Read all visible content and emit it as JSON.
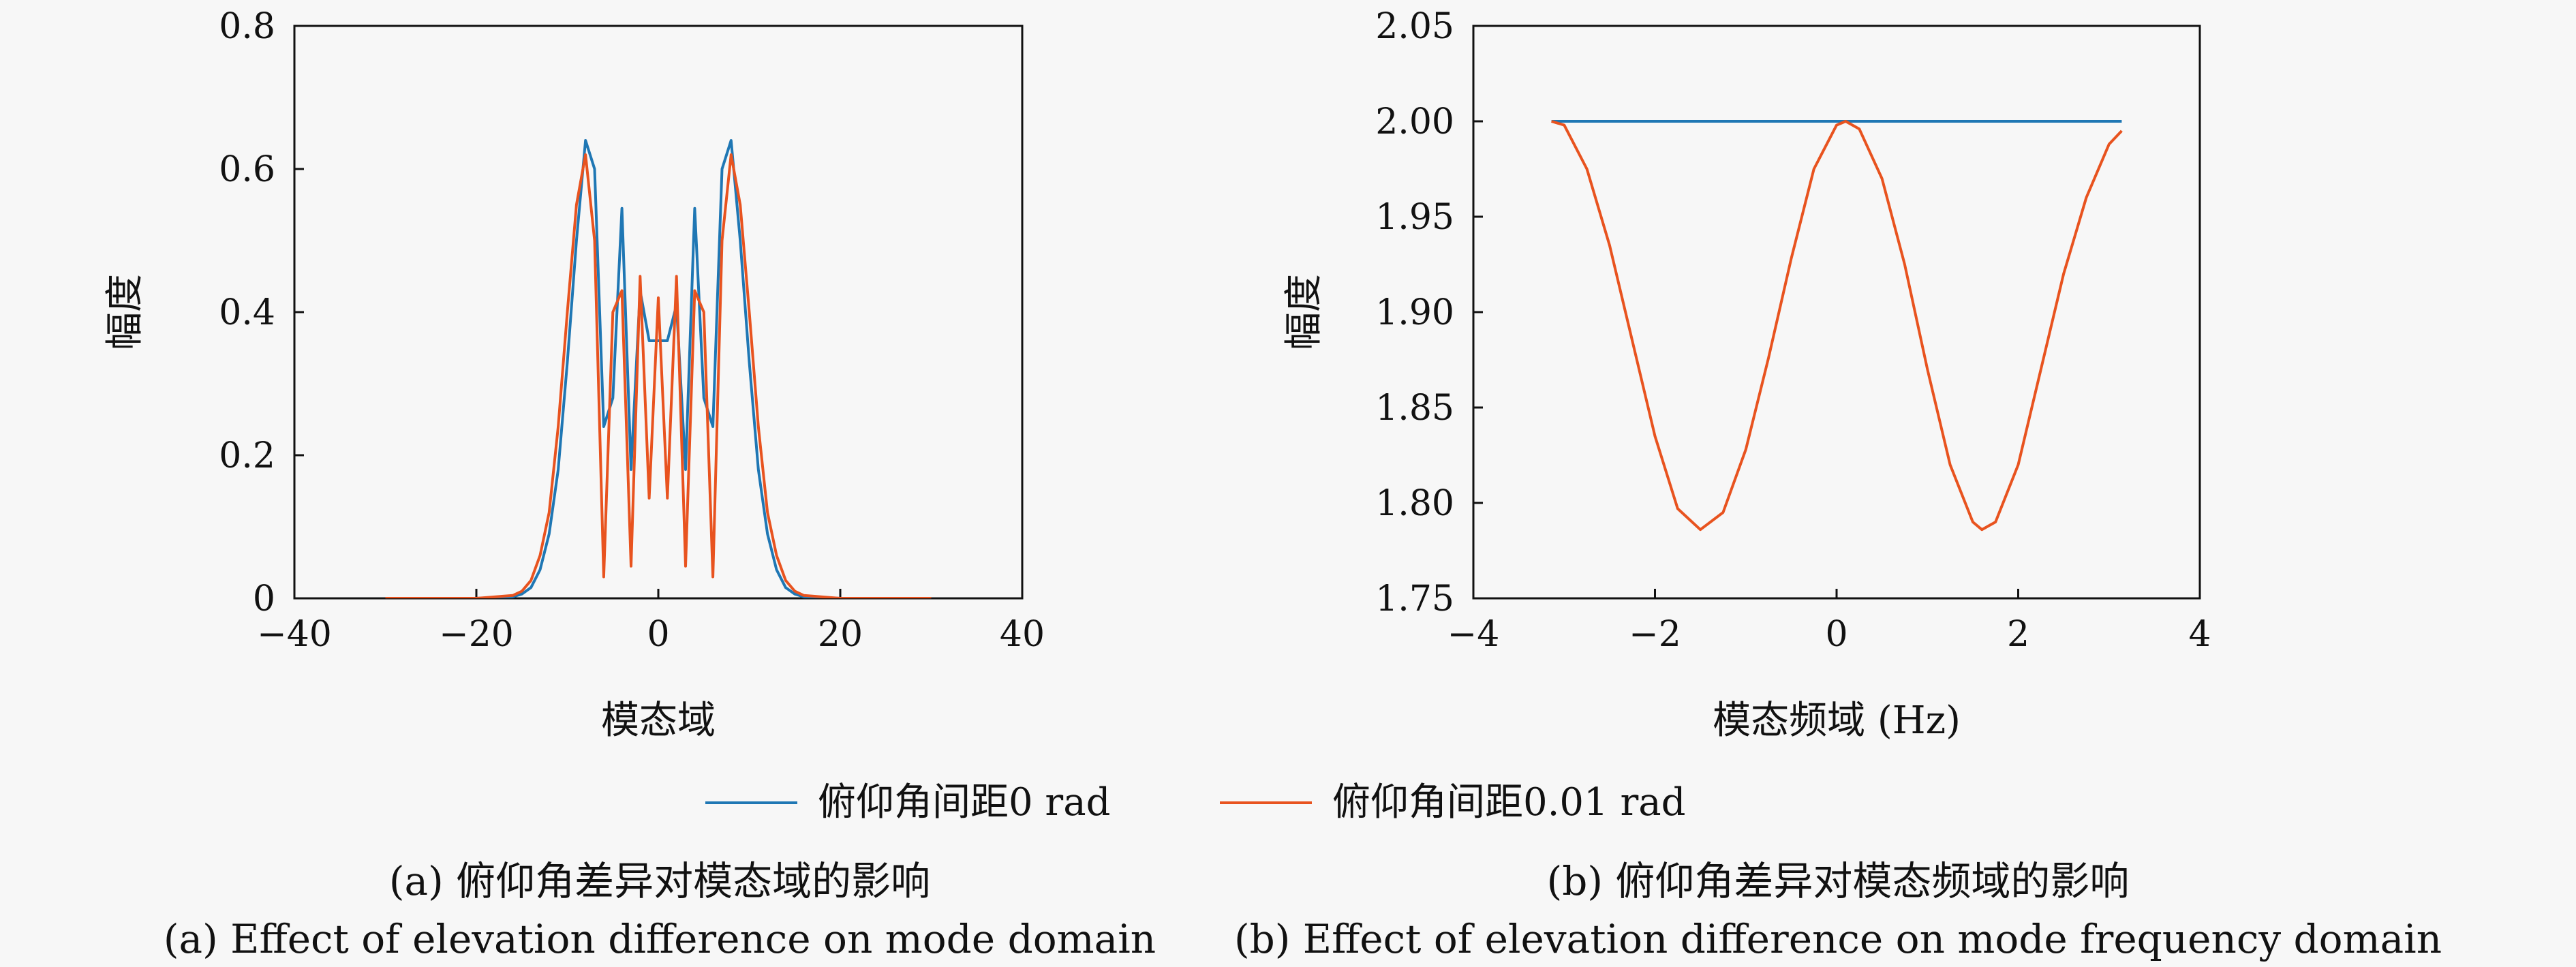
{
  "colors": {
    "series_blue": "#1f77b4",
    "series_orange": "#e8531f",
    "background": "#f7f7f7"
  },
  "legend": {
    "placement": "bottom-center",
    "entries": [
      "俯仰角间距0 rad",
      "俯仰角间距0.01 rad"
    ]
  },
  "chart_data": [
    {
      "type": "line",
      "title": "",
      "xlabel": "模态域",
      "ylabel": "幅度",
      "xlim": [
        -40,
        40
      ],
      "ylim": [
        0,
        0.8
      ],
      "xticks": [
        -40,
        -20,
        0,
        20,
        40
      ],
      "xtick_labels": [
        "−40",
        "−20",
        "0",
        "20",
        "40"
      ],
      "yticks": [
        0,
        0.2,
        0.4,
        0.6,
        0.8
      ],
      "ytick_labels": [
        "0",
        "0.2",
        "0.4",
        "0.6",
        "0.8"
      ],
      "grid": false,
      "caption_cn": "(a) 俯仰角差异对模态域的影响",
      "caption_en": "(a) Effect of elevation difference on mode domain",
      "series": [
        {
          "name": "俯仰角间距0 rad",
          "x": [
            -30,
            -20,
            -16,
            -15,
            -14,
            -13,
            -12,
            -11,
            -10,
            -9,
            -8,
            -7,
            -6,
            -5,
            -4,
            -3,
            -2,
            -1,
            0,
            1,
            2,
            3,
            4,
            5,
            6,
            7,
            8,
            9,
            10,
            11,
            12,
            13,
            14,
            15,
            16,
            20,
            30
          ],
          "y": [
            0,
            0,
            0.002,
            0.006,
            0.015,
            0.04,
            0.09,
            0.18,
            0.33,
            0.5,
            0.64,
            0.6,
            0.24,
            0.28,
            0.545,
            0.18,
            0.43,
            0.36,
            0.36,
            0.36,
            0.41,
            0.18,
            0.545,
            0.28,
            0.24,
            0.6,
            0.64,
            0.5,
            0.33,
            0.18,
            0.09,
            0.04,
            0.015,
            0.006,
            0.002,
            0,
            0
          ]
        },
        {
          "name": "俯仰角间距0.01 rad",
          "x": [
            -30,
            -20,
            -16,
            -15,
            -14,
            -13,
            -12,
            -11,
            -10,
            -9,
            -8,
            -7,
            -6,
            -5,
            -4,
            -3,
            -2,
            -1,
            0,
            1,
            2,
            3,
            4,
            5,
            6,
            7,
            8,
            9,
            10,
            11,
            12,
            13,
            14,
            15,
            16,
            20,
            30
          ],
          "y": [
            0,
            0,
            0.004,
            0.01,
            0.025,
            0.06,
            0.12,
            0.24,
            0.4,
            0.55,
            0.62,
            0.5,
            0.03,
            0.4,
            0.43,
            0.045,
            0.45,
            0.14,
            0.42,
            0.14,
            0.45,
            0.045,
            0.43,
            0.4,
            0.03,
            0.5,
            0.62,
            0.55,
            0.4,
            0.24,
            0.12,
            0.06,
            0.025,
            0.01,
            0.004,
            0,
            0
          ]
        }
      ]
    },
    {
      "type": "line",
      "title": "",
      "xlabel": "模态频域 (Hz)",
      "ylabel": "幅度",
      "xlim": [
        -4,
        4
      ],
      "ylim": [
        1.75,
        2.05
      ],
      "xticks": [
        -4,
        -2,
        0,
        2,
        4
      ],
      "xtick_labels": [
        "−4",
        "−2",
        "0",
        "2",
        "4"
      ],
      "yticks": [
        1.75,
        1.8,
        1.85,
        1.9,
        1.95,
        2.0,
        2.05
      ],
      "ytick_labels": [
        "1.75",
        "1.80",
        "1.85",
        "1.90",
        "1.95",
        "2.00",
        "2.05"
      ],
      "grid": false,
      "caption_cn": "(b) 俯仰角差异对模态频域的影响",
      "caption_en": "(b) Effect of elevation difference on mode frequency domain",
      "series": [
        {
          "name": "俯仰角间距0 rad",
          "x": [
            -3.14,
            3.14
          ],
          "y": [
            2.0,
            2.0
          ]
        },
        {
          "name": "俯仰角间距0.01 rad",
          "x": [
            -3.14,
            -3.0,
            -2.75,
            -2.5,
            -2.25,
            -2.0,
            -1.75,
            -1.5,
            -1.25,
            -1.0,
            -0.75,
            -0.5,
            -0.25,
            0,
            0.1,
            0.25,
            0.5,
            0.75,
            1.0,
            1.25,
            1.5,
            1.6,
            1.75,
            2.0,
            2.25,
            2.5,
            2.75,
            3.0,
            3.14
          ],
          "y": [
            2.0,
            1.998,
            1.975,
            1.935,
            1.885,
            1.835,
            1.797,
            1.786,
            1.795,
            1.828,
            1.876,
            1.928,
            1.975,
            1.998,
            2.0,
            1.996,
            1.97,
            1.925,
            1.87,
            1.82,
            1.79,
            1.786,
            1.79,
            1.82,
            1.87,
            1.92,
            1.96,
            1.988,
            1.995
          ]
        }
      ]
    }
  ]
}
